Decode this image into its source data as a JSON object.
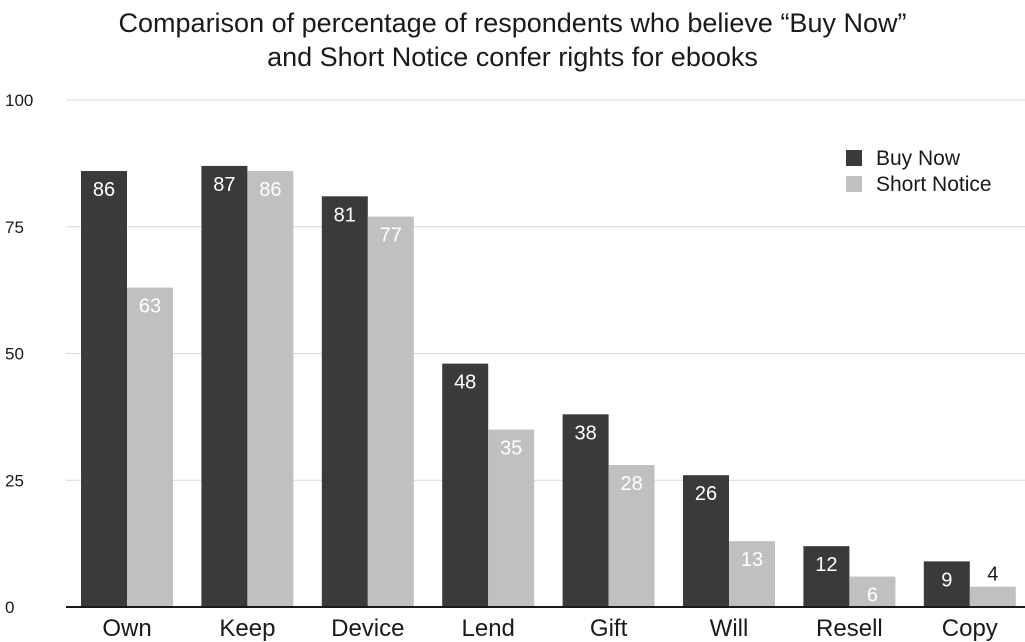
{
  "chart_data": {
    "type": "bar",
    "title_lines": [
      "Comparison of percentage of respondents who believe “Buy Now”",
      "and Short Notice confer rights for ebooks"
    ],
    "categories": [
      "Own",
      "Keep",
      "Device",
      "Lend",
      "Gift",
      "Will",
      "Resell",
      "Copy"
    ],
    "series": [
      {
        "name": "Buy Now",
        "values": [
          86,
          87,
          81,
          48,
          38,
          26,
          12,
          9
        ],
        "color": "#3a3a3a",
        "label_color": "#ffffff"
      },
      {
        "name": "Short Notice",
        "values": [
          63,
          86,
          77,
          35,
          28,
          13,
          6,
          4
        ],
        "color": "#c0c0c0",
        "label_color": "#ffffff"
      }
    ],
    "ylim": [
      0,
      100
    ],
    "yticks": [
      0,
      25,
      50,
      75,
      100
    ],
    "grid": true,
    "legend_position": "top-right",
    "xlabel": "",
    "ylabel": ""
  }
}
